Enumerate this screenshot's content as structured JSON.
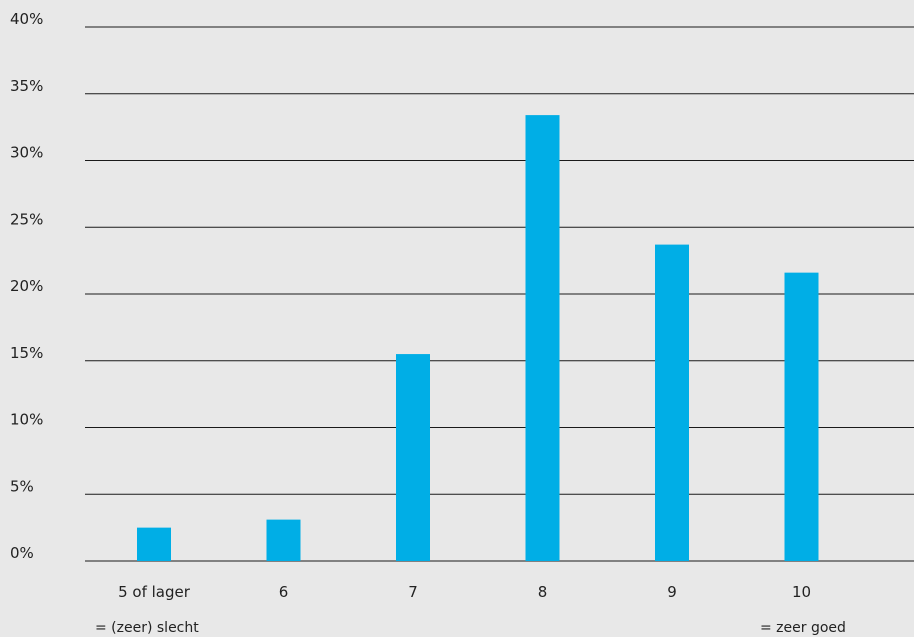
{
  "chart_data": {
    "type": "bar",
    "categories": [
      "5 of lager",
      "6",
      "7",
      "8",
      "9",
      "10"
    ],
    "values": [
      2.5,
      3.1,
      15.5,
      33.4,
      23.7,
      21.6
    ],
    "ylim": [
      0,
      40
    ],
    "yticks": [
      0,
      5,
      10,
      15,
      20,
      25,
      30,
      35,
      40
    ],
    "ytick_labels": [
      "0%",
      "5%",
      "10%",
      "15%",
      "20%",
      "25%",
      "30%",
      "35%",
      "40%"
    ],
    "grid": true,
    "bar_color": "#00aee6",
    "gridline_color": "#1a1a1a",
    "background": "#e8e8e8",
    "annotations": {
      "left": "= (zeer) slecht",
      "right": "= zeer goed"
    }
  }
}
